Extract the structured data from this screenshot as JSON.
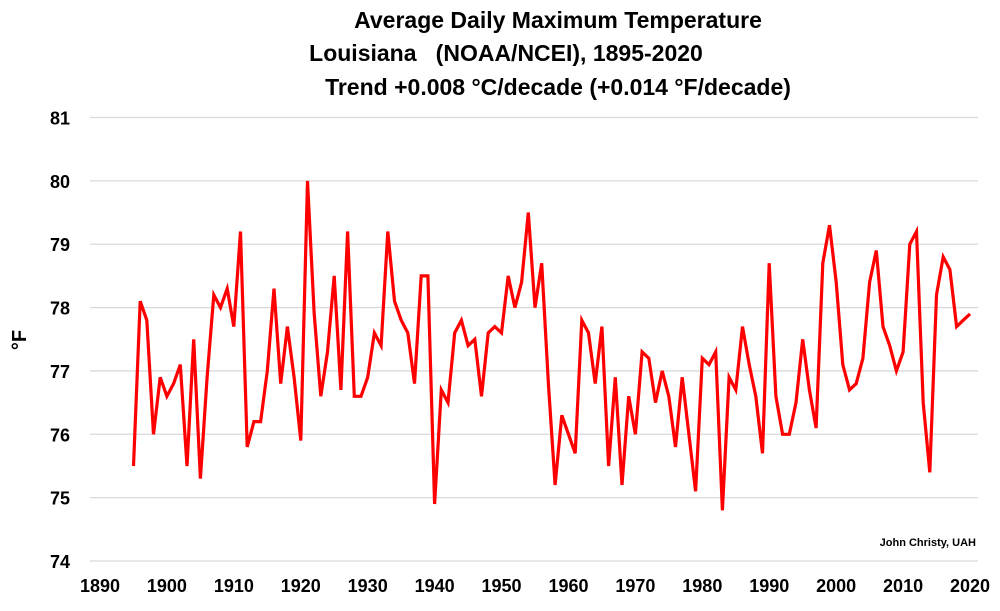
{
  "chart_data": {
    "type": "line",
    "title": "Average Daily Maximum Temperature",
    "subtitle": "Louisiana   (NOAA/NCEI), 1895-2020",
    "subtitle2": "Trend +0.008 °C/decade (+0.014 °F/decade)",
    "xlabel": "",
    "ylabel": "°F",
    "xlim": [
      1890,
      2020
    ],
    "ylim": [
      74,
      81
    ],
    "x_ticks": [
      "1890",
      "1900",
      "1910",
      "1920",
      "1930",
      "1940",
      "1950",
      "1960",
      "1970",
      "1980",
      "1990",
      "2000",
      "2010",
      "2020"
    ],
    "y_ticks": [
      "74",
      "75",
      "76",
      "77",
      "78",
      "79",
      "80",
      "81"
    ],
    "grid": "horizontal",
    "legend": "none",
    "annotation": "John Christy, UAH",
    "line_color": "#ff0000",
    "series": [
      {
        "name": "Louisiana Avg Daily Max Temp",
        "x": [
          1895,
          1896,
          1897,
          1898,
          1899,
          1900,
          1901,
          1902,
          1903,
          1904,
          1905,
          1906,
          1907,
          1908,
          1909,
          1910,
          1911,
          1912,
          1913,
          1914,
          1915,
          1916,
          1917,
          1918,
          1919,
          1920,
          1921,
          1922,
          1923,
          1924,
          1925,
          1926,
          1927,
          1928,
          1929,
          1930,
          1931,
          1932,
          1933,
          1934,
          1935,
          1936,
          1937,
          1938,
          1939,
          1940,
          1941,
          1942,
          1943,
          1944,
          1945,
          1946,
          1947,
          1948,
          1949,
          1950,
          1951,
          1952,
          1953,
          1954,
          1955,
          1956,
          1957,
          1958,
          1959,
          1960,
          1961,
          1962,
          1963,
          1964,
          1965,
          1966,
          1967,
          1968,
          1969,
          1970,
          1971,
          1972,
          1973,
          1974,
          1975,
          1976,
          1977,
          1978,
          1979,
          1980,
          1981,
          1982,
          1983,
          1984,
          1985,
          1986,
          1987,
          1988,
          1989,
          1990,
          1991,
          1992,
          1993,
          1994,
          1995,
          1996,
          1997,
          1998,
          1999,
          2000,
          2001,
          2002,
          2003,
          2004,
          2005,
          2006,
          2007,
          2008,
          2009,
          2010,
          2011,
          2012,
          2013,
          2014,
          2015,
          2016,
          2017,
          2018,
          2019,
          2020
        ],
        "values": [
          75.5,
          78.1,
          77.8,
          76.0,
          76.9,
          76.6,
          76.8,
          77.1,
          75.5,
          77.5,
          75.3,
          76.9,
          78.2,
          78.0,
          78.3,
          77.7,
          79.2,
          75.8,
          76.2,
          76.2,
          77.0,
          78.3,
          76.8,
          77.7,
          76.9,
          75.9,
          80.0,
          77.9,
          76.6,
          77.3,
          78.5,
          76.7,
          79.2,
          76.6,
          76.6,
          76.9,
          77.6,
          77.4,
          79.2,
          78.1,
          77.8,
          77.6,
          76.8,
          78.5,
          78.5,
          74.9,
          76.7,
          76.5,
          77.6,
          77.8,
          77.4,
          77.5,
          76.6,
          77.6,
          77.7,
          77.6,
          78.5,
          78.0,
          78.4,
          79.5,
          78.0,
          78.7,
          76.8,
          75.2,
          76.3,
          76.0,
          75.7,
          77.8,
          77.6,
          76.8,
          77.7,
          75.5,
          76.9,
          75.2,
          76.6,
          76.0,
          77.3,
          77.2,
          76.5,
          77.0,
          76.6,
          75.8,
          76.9,
          76.0,
          75.1,
          77.2,
          77.1,
          77.3,
          74.8,
          76.9,
          76.7,
          77.7,
          77.1,
          76.6,
          75.7,
          78.7,
          76.6,
          76.0,
          76.0,
          76.5,
          77.5,
          76.7,
          76.1,
          78.7,
          79.3,
          78.4,
          77.1,
          76.7,
          76.8,
          77.2,
          78.4,
          78.9,
          77.7,
          77.4,
          77.0,
          77.3,
          79.0,
          79.2,
          76.5,
          75.4,
          78.2,
          78.8,
          78.6,
          77.7,
          77.8,
          77.9
        ]
      }
    ]
  }
}
